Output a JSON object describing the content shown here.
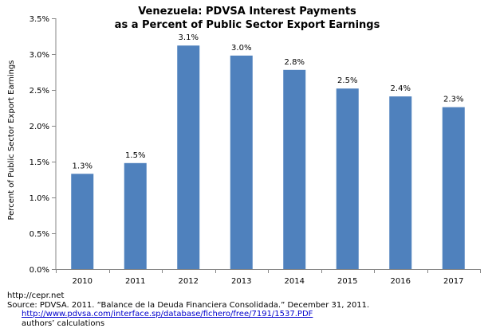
{
  "chart_data": {
    "type": "bar",
    "title": [
      "Venezuela: PDVSA Interest Payments",
      "as a Percent of Public Sector Export Earnings"
    ],
    "xlabel": "",
    "ylabel": "Percent of Public Sector Export Earnings",
    "categories": [
      "2010",
      "2011",
      "2012",
      "2013",
      "2014",
      "2015",
      "2016",
      "2017"
    ],
    "values": [
      1.3,
      1.5,
      3.1,
      3.0,
      2.8,
      2.5,
      2.4,
      2.3
    ],
    "bar_heights": [
      1.33,
      1.48,
      3.12,
      2.98,
      2.78,
      2.52,
      2.41,
      2.26
    ],
    "data_labels": [
      "1.3%",
      "1.5%",
      "3.1%",
      "3.0%",
      "2.8%",
      "2.5%",
      "2.4%",
      "2.3%"
    ],
    "ylim": [
      0,
      3.5
    ],
    "yticks": [
      0,
      0.5,
      1.0,
      1.5,
      2.0,
      2.5,
      3.0,
      3.5
    ],
    "ytick_labels": [
      "0.0%",
      "0.5%",
      "1.0%",
      "1.5%",
      "2.0%",
      "2.5%",
      "3.0%",
      "3.5%"
    ],
    "grid": false,
    "legend": "none",
    "bar_color": "#4f81bd"
  },
  "notes": {
    "line1": "http://cepr.net",
    "line2": "Source: PDVSA. 2011. “Balance de la Deuda Financiera Consolidada.” December 31, 2011.",
    "link": "http://www.pdvsa.com/interface.sp/database/fichero/free/7191/1537.PDF",
    "line4": "authors’ calculations"
  }
}
